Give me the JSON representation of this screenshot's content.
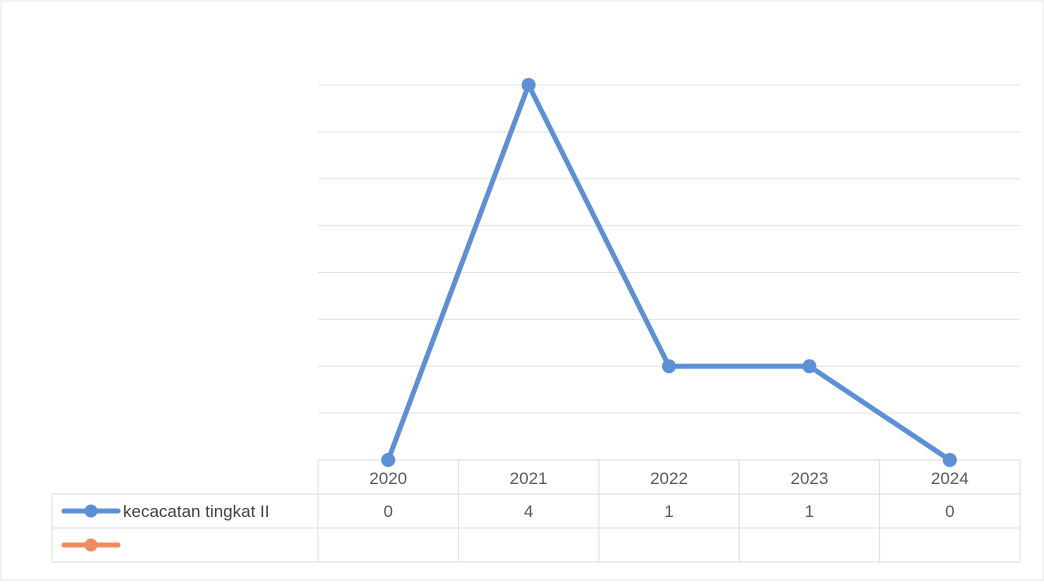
{
  "chart_data": {
    "type": "line",
    "title": "",
    "xlabel": "",
    "ylabel": "",
    "categories": [
      "2020",
      "2021",
      "2022",
      "2023",
      "2024"
    ],
    "ylim": [
      0,
      4
    ],
    "grid": true,
    "legend": "data-table-left",
    "series": [
      {
        "name": "kecacatan tingkat II",
        "values": [
          0,
          4,
          1,
          1,
          0
        ],
        "color": "#5b8fd6"
      },
      {
        "name": "",
        "values": [
          null,
          null,
          null,
          null,
          null
        ],
        "color": "#f08a60"
      }
    ],
    "table": {
      "rows": [
        {
          "label": "kecacatan tingkat II",
          "cells": [
            "0",
            "4",
            "1",
            "1",
            "0"
          ]
        },
        {
          "label": "",
          "cells": [
            "",
            "",
            "",
            "",
            ""
          ]
        }
      ]
    }
  }
}
